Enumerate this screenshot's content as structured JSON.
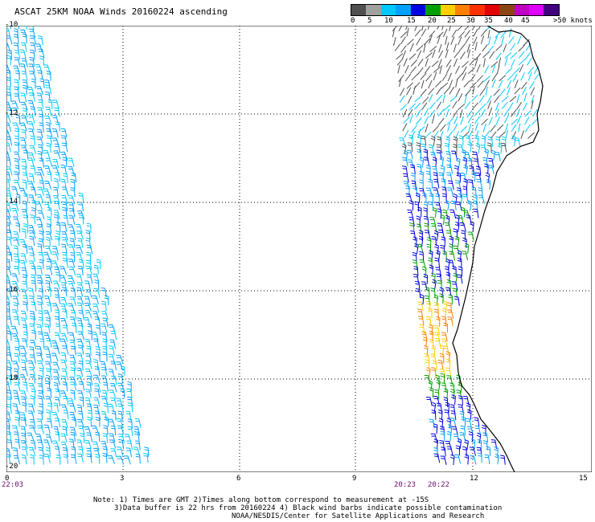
{
  "header": {
    "title": "ASCAT 25KM NOAA Winds 20160224 ascending"
  },
  "legend": {
    "colors": [
      "#505050",
      "#a0a0a0",
      "#00c8ff",
      "#00a0ff",
      "#0000e0",
      "#00a000",
      "#ffd000",
      "#ff8000",
      "#ff3000",
      "#e00000",
      "#8b4513",
      "#c000c0",
      "#e000ff",
      "#400080"
    ],
    "labels": [
      "0",
      "5",
      "10",
      "15",
      "20",
      "25",
      "30",
      "35",
      "40",
      "45",
      ">50 knots"
    ]
  },
  "map": {
    "lat_labels": [
      "-10",
      "-12",
      "-14",
      "-16",
      "-18",
      "-20"
    ],
    "lon_labels": [
      "0",
      "3",
      "6",
      "9",
      "12",
      "15"
    ],
    "time_labels": [
      "22:03",
      "20:23",
      "20:22"
    ]
  },
  "notes": {
    "line1": "Note: 1) Times are GMT 2)Times along bottom correspond to measurement at -15S",
    "line2": "3)Data buffer is 22 hrs from 20160224 4) Black wind barbs indicate possible contamination",
    "line3": "NOAA/NESDIS/Center for Satellite Applications and Research"
  }
}
